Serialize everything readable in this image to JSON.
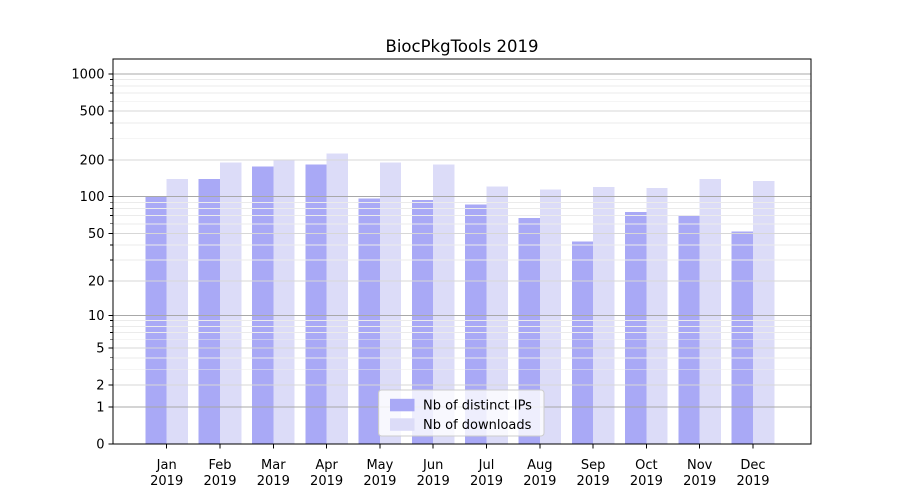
{
  "chart_data": {
    "type": "bar",
    "title": "BiocPkgTools 2019",
    "categories": [
      "Jan",
      "Feb",
      "Mar",
      "Apr",
      "May",
      "Jun",
      "Jul",
      "Aug",
      "Sep",
      "Oct",
      "Nov",
      "Dec"
    ],
    "category_sublabel": "2019",
    "series": [
      {
        "name": "Nb of distinct IPs",
        "key": "distinct-ips",
        "color": "#a9a9f6",
        "values": [
          100,
          139,
          176,
          183,
          97,
          94,
          86,
          67,
          43,
          75,
          71,
          52
        ]
      },
      {
        "name": "Nb of downloads",
        "key": "downloads",
        "color": "#dcdcf8",
        "values": [
          140,
          190,
          201,
          226,
          190,
          183,
          121,
          115,
          120,
          118,
          139,
          135
        ]
      }
    ],
    "yscale": "log1p",
    "ylim": [
      0,
      1320
    ],
    "yticks": [
      0,
      1,
      2,
      5,
      10,
      20,
      50,
      100,
      200,
      500,
      1000
    ],
    "major_yticks": [
      1,
      10,
      100,
      1000
    ],
    "grid": "both",
    "legend": {
      "position": "lower center",
      "items": [
        "Nb of distinct IPs",
        "Nb of downloads"
      ]
    },
    "style": {
      "grid_major_color": "#a8a8a8",
      "grid_mid_color": "#d7d7d7",
      "grid_minor_color": "#ebebeb",
      "spine_color": "#000000",
      "text_color": "#000000",
      "legend_border_color": "#cccccc",
      "legend_background": "rgba(255,255,255,0.8)",
      "background": "#ffffff"
    }
  }
}
